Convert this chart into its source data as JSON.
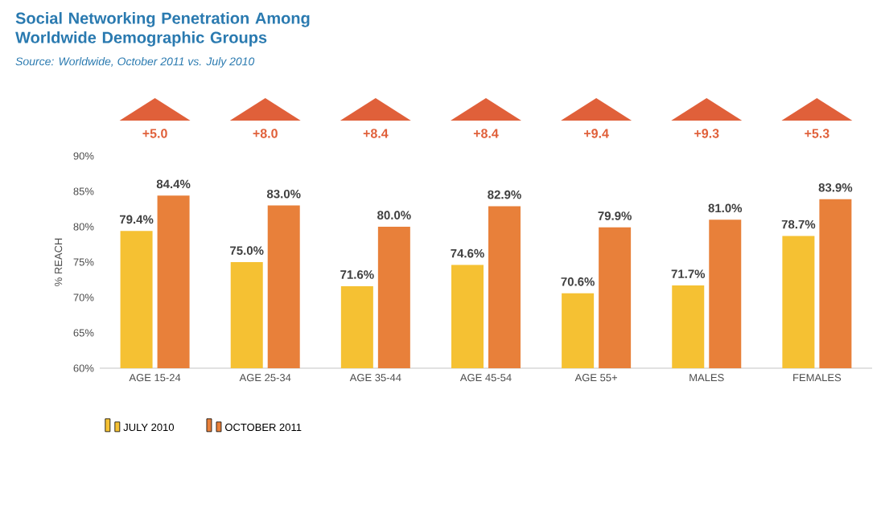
{
  "chart_data": {
    "type": "bar",
    "title": "Social Networking Penetration Among\nWorldwide Demographic Groups",
    "annotations": [
      "Source: Worldwide, October 2011 vs. July 2010",
      "+5.0",
      "+8.0",
      "+8.4",
      "+8.4",
      "+9.4",
      "+9.3",
      "+5.3"
    ],
    "categories": [
      "AGE 15-24",
      "AGE 25-34",
      "AGE 35-44",
      "AGE 45-54",
      "AGE 55+",
      "MALES",
      "FEMALES"
    ],
    "series": [
      {
        "name": "JULY 2010",
        "color": "#f5c133",
        "values": [
          79.4,
          75.0,
          71.6,
          74.6,
          70.6,
          71.7,
          78.7
        ],
        "value_labels": [
          "79.4%",
          "75.0%",
          "71.6%",
          "74.6%",
          "70.6%",
          "71.7%",
          "78.7%"
        ]
      },
      {
        "name": "OCTOBER 2011",
        "color": "#e8803a",
        "values": [
          84.4,
          83.0,
          80.0,
          82.9,
          79.9,
          81.0,
          83.9
        ],
        "value_labels": [
          "84.4%",
          "83.0%",
          "80.0%",
          "82.9%",
          "79.9%",
          "81.0%",
          "83.9%"
        ]
      }
    ],
    "ylabel": "% REACH",
    "ylim": [
      60,
      90
    ],
    "yticks": [
      {
        "value": 60,
        "label": "60%"
      },
      {
        "value": 65,
        "label": "65%"
      },
      {
        "value": 70,
        "label": "70%"
      },
      {
        "value": 75,
        "label": "75%"
      },
      {
        "value": 80,
        "label": "80%"
      },
      {
        "value": 85,
        "label": "85%"
      },
      {
        "value": 90,
        "label": "90%"
      }
    ],
    "grid": false,
    "legend": "bottom left"
  }
}
